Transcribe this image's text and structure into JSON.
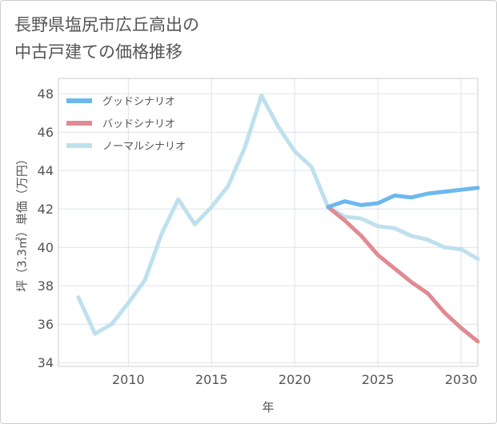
{
  "title_lines": [
    "長野県塩尻市広丘高出の",
    "中古戸建ての価格推移"
  ],
  "chart_data": {
    "type": "line",
    "title": "長野県塩尻市広丘高出の中古戸建ての価格推移",
    "xlabel": "年",
    "ylabel": "坪（3.3㎡）単価（万円）",
    "xlim": [
      2005.8,
      2031.0
    ],
    "ylim": [
      33.8,
      48.8
    ],
    "xticks": [
      2010,
      2015,
      2020,
      2025,
      2030
    ],
    "yticks": [
      34,
      36,
      38,
      40,
      42,
      44,
      46,
      48
    ],
    "grid": true,
    "legend_position": "top-left",
    "series": [
      {
        "name": "グッドシナリオ",
        "color": "#6cb8ee",
        "x": [
          2022,
          2023,
          2024,
          2025,
          2026,
          2027,
          2028,
          2029,
          2030,
          2031
        ],
        "values": [
          42.1,
          42.4,
          42.2,
          42.3,
          42.7,
          42.6,
          42.8,
          42.9,
          43.0,
          43.1
        ]
      },
      {
        "name": "バッドシナリオ",
        "color": "#e08a92",
        "x": [
          2022,
          2023,
          2024,
          2025,
          2026,
          2027,
          2028,
          2029,
          2030,
          2031
        ],
        "values": [
          42.1,
          41.4,
          40.6,
          39.6,
          38.9,
          38.2,
          37.6,
          36.6,
          35.8,
          35.1
        ]
      },
      {
        "name": "ノーマルシナリオ",
        "color": "#bfe0ee",
        "x": [
          2007,
          2008,
          2009,
          2010,
          2011,
          2012,
          2013,
          2014,
          2015,
          2016,
          2017,
          2018,
          2019,
          2020,
          2021,
          2022,
          2023,
          2024,
          2025,
          2026,
          2027,
          2028,
          2029,
          2030,
          2031
        ],
        "values": [
          37.4,
          35.5,
          36.0,
          37.1,
          38.3,
          40.7,
          42.5,
          41.2,
          42.1,
          43.2,
          45.2,
          47.9,
          46.3,
          45.0,
          44.2,
          42.1,
          41.6,
          41.5,
          41.1,
          41.0,
          40.6,
          40.4,
          40.0,
          39.9,
          39.4
        ]
      }
    ]
  }
}
